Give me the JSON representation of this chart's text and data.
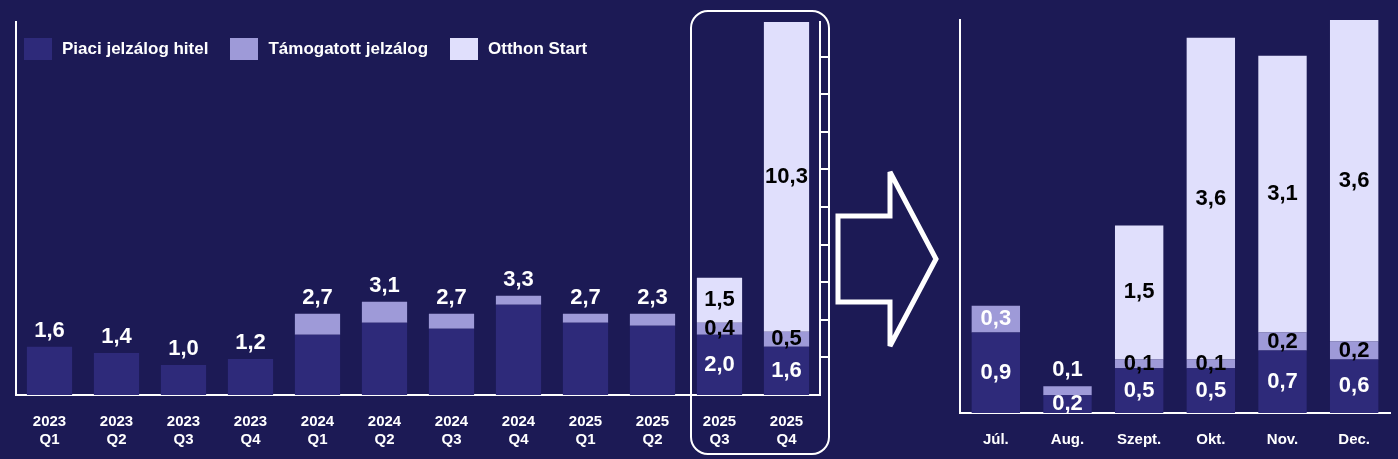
{
  "chart_data": [
    {
      "type": "bar",
      "stacked": true,
      "legend": "top left",
      "tick_labels": "x",
      "categories": [
        "2023 Q1",
        "2023 Q2",
        "2023 Q3",
        "2023 Q4",
        "2024 Q1",
        "2024 Q2",
        "2024 Q3",
        "2024 Q4",
        "2025 Q1",
        "2025 Q2",
        "2025 Q3",
        "2025 Q4"
      ],
      "series": [
        {
          "name": "Piaci jelzálog hitel",
          "color": "#2e2a7a",
          "values": [
            1.6,
            1.4,
            1.0,
            1.2,
            2.0,
            2.4,
            2.2,
            3.0,
            2.4,
            2.3,
            2.0,
            1.6
          ],
          "value_labels": [
            null,
            null,
            null,
            null,
            null,
            null,
            null,
            null,
            null,
            "2,3",
            "2,0",
            "1,6"
          ]
        },
        {
          "name": "Támogatott jelzálog",
          "color": "#9e9ad8",
          "values": [
            null,
            null,
            null,
            null,
            0.7,
            0.7,
            0.5,
            0.3,
            0.3,
            0.4,
            0.4,
            0.5
          ],
          "value_labels": [
            null,
            null,
            null,
            null,
            null,
            null,
            null,
            null,
            null,
            null,
            "0,4",
            "0,5"
          ]
        },
        {
          "name": "Otthon Start",
          "color": "#e0dffc",
          "values": [
            null,
            null,
            null,
            null,
            null,
            null,
            null,
            null,
            null,
            null,
            1.5,
            10.3
          ],
          "value_labels": [
            null,
            null,
            null,
            null,
            null,
            null,
            null,
            null,
            null,
            null,
            "1,5",
            "10,3"
          ]
        }
      ],
      "totals": [
        "1,6",
        "1,4",
        "1,0",
        "1,2",
        "2,7",
        "3,1",
        "2,7",
        "3,3",
        "2,7",
        null,
        null,
        null
      ],
      "ylim": [
        0,
        12.4
      ],
      "yticks": [
        {
          "value": 1.25,
          "label": null
        },
        {
          "value": 2.5,
          "label": null
        },
        {
          "value": 3.75,
          "label": null
        },
        {
          "value": 5,
          "label": null
        },
        {
          "value": 6.25,
          "label": null
        },
        {
          "value": 7.5,
          "label": null
        },
        {
          "value": 8.75,
          "label": null
        },
        {
          "value": 10,
          "label": null
        },
        {
          "value": 11.25,
          "label": null
        }
      ]
    },
    {
      "type": "bar",
      "stacked": true,
      "tick_labels": "x",
      "categories": [
        "Júl.",
        "Aug.",
        "Szept.",
        "Okt.",
        "Nov.",
        "Dec."
      ],
      "series": [
        {
          "color": "#2e2a7a",
          "values": [
            0.9,
            0.2,
            0.5,
            0.5,
            0.7,
            0.6
          ],
          "value_labels": [
            "0,9",
            "0,2",
            "0,5",
            "0,5",
            "0,7",
            "0,6"
          ]
        },
        {
          "color": "#9e9ad8",
          "values": [
            0.3,
            0.1,
            0.1,
            0.1,
            0.2,
            0.2
          ],
          "value_labels": [
            "0,3",
            "0,1",
            "0,1",
            "0,1",
            "0,2",
            "0,2"
          ]
        },
        {
          "color": "#e0dffc",
          "values": [
            null,
            null,
            1.5,
            3.6,
            3.1,
            3.6
          ],
          "value_labels": [
            null,
            null,
            "1,5",
            "3,6",
            "3,1",
            "3,6"
          ]
        }
      ]
    }
  ]
}
